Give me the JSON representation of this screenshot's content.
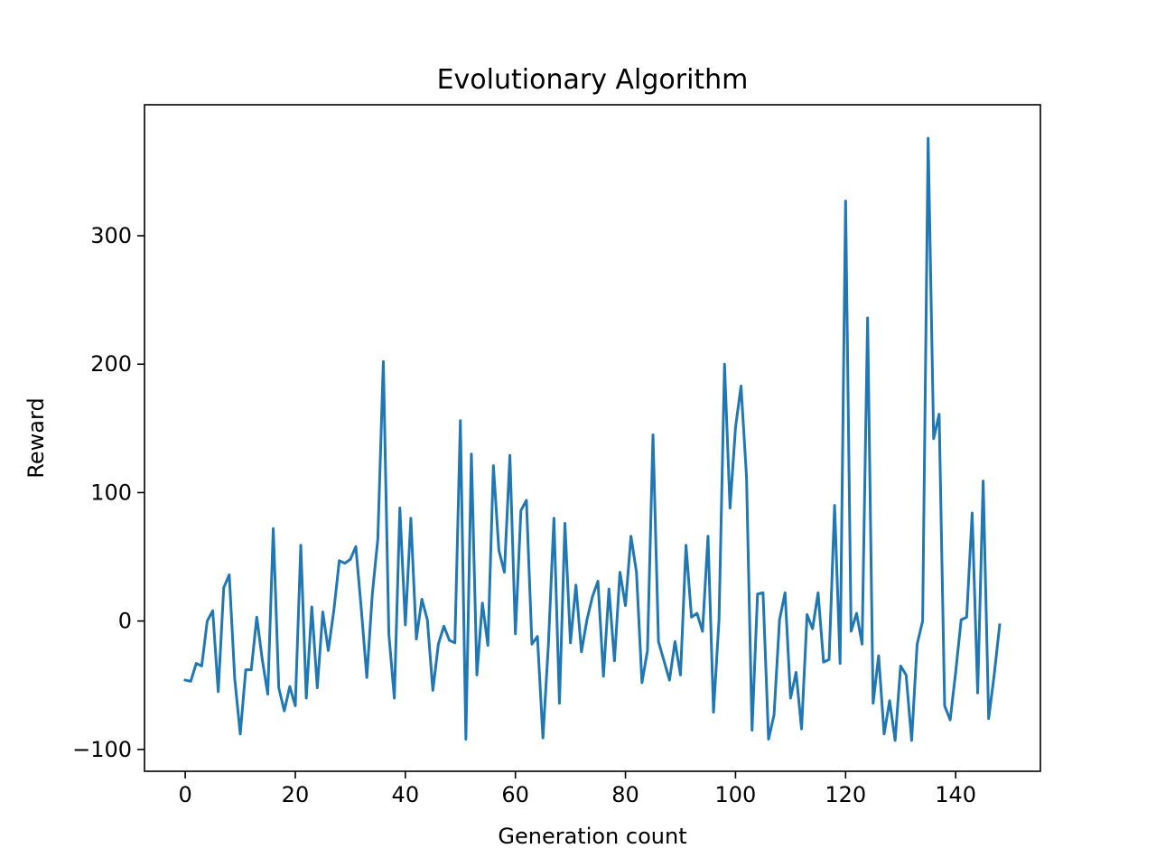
{
  "chart_data": {
    "type": "line",
    "title": "Evolutionary Algorithm",
    "xlabel": "Generation count",
    "ylabel": "Reward",
    "xlim": [
      -7.4,
      155.4
    ],
    "ylim": [
      -117,
      402
    ],
    "x_ticks": [
      0,
      20,
      40,
      60,
      80,
      100,
      120,
      140
    ],
    "y_ticks": [
      -100,
      0,
      100,
      200,
      300
    ],
    "grid": false,
    "legend": "none",
    "series": [
      {
        "color": "#1f77b4",
        "values": [
          -46,
          -47,
          -33,
          -35,
          0,
          8,
          -55,
          26,
          36,
          -45,
          -88,
          -38,
          -38,
          3,
          -30,
          -57,
          72,
          -52,
          -70,
          -51,
          -66,
          59,
          -60,
          11,
          -52,
          7,
          -23,
          8,
          47,
          45,
          48,
          58,
          9,
          -44,
          21,
          64,
          202,
          -10,
          -60,
          88,
          -3,
          80,
          -14,
          17,
          1,
          -54,
          -18,
          -4,
          -15,
          -17,
          156,
          -92,
          130,
          -42,
          14,
          -19,
          121,
          55,
          38,
          129,
          -10,
          86,
          94,
          -18,
          -12,
          -91,
          -18,
          80,
          -64,
          76,
          -17,
          28,
          -24,
          1,
          19,
          31,
          -43,
          25,
          -31,
          38,
          12,
          66,
          38,
          -48,
          -23,
          145,
          -16,
          -31,
          -46,
          -16,
          -42,
          59,
          3,
          6,
          -8,
          66,
          -71,
          1,
          200,
          88,
          151,
          183,
          112,
          -85,
          21,
          22,
          -92,
          -73,
          1,
          22,
          -60,
          -40,
          -84,
          5,
          -6,
          22,
          -32,
          -30,
          90,
          -33,
          327,
          -8,
          6,
          -18,
          236,
          -64,
          -27,
          -88,
          -62,
          -93,
          -35,
          -42,
          -93,
          -18,
          0,
          376,
          142,
          161,
          -66,
          -77,
          -40,
          1,
          3,
          84,
          -56,
          109,
          -76,
          -42,
          -3
        ]
      }
    ]
  }
}
